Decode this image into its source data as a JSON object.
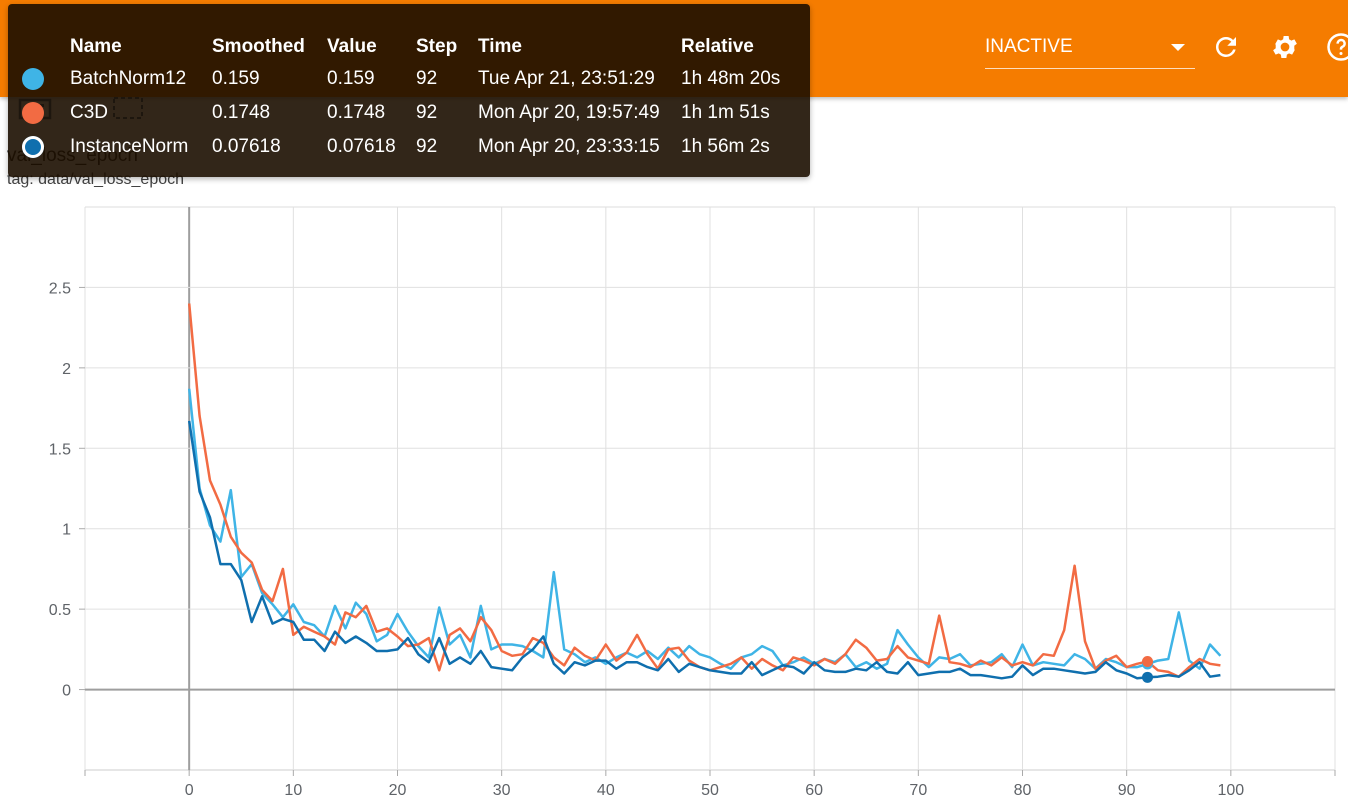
{
  "header": {
    "run_selector_value": "INACTIVE",
    "accent_color": "#f57c00"
  },
  "icons": [
    "refresh-icon",
    "settings-icon",
    "help-icon",
    "expand-icon",
    "fit-domain-icon"
  ],
  "card": {
    "title": "val_loss_epoch",
    "tag": "tag: data/val_loss_epoch"
  },
  "tooltip": {
    "columns": [
      "Name",
      "Smoothed",
      "Value",
      "Step",
      "Time",
      "Relative"
    ],
    "rows": [
      {
        "color": "#3fb4e6",
        "name": "BatchNorm12",
        "smoothed": "0.159",
        "value": "0.159",
        "step": "92",
        "time": "Tue Apr 21, 23:51:29",
        "relative": "1h 48m 20s"
      },
      {
        "color": "#f26b43",
        "name": "C3D",
        "smoothed": "0.1748",
        "value": "0.1748",
        "step": "92",
        "time": "Mon Apr 20, 19:57:49",
        "relative": "1h 1m 51s"
      },
      {
        "color": "#0f6fae",
        "name": "InstanceNorm",
        "smoothed": "0.07618",
        "value": "0.07618",
        "step": "92",
        "time": "Mon Apr 20, 23:33:15",
        "relative": "1h 56m 2s"
      }
    ]
  },
  "chart_data": {
    "type": "line",
    "title": "val_loss_epoch",
    "xlabel": "",
    "ylabel": "",
    "xlim": [
      -10,
      110
    ],
    "ylim": [
      -0.5,
      3
    ],
    "xticks": [
      0,
      10,
      20,
      30,
      40,
      50,
      60,
      70,
      80,
      90,
      100
    ],
    "yticks": [
      0,
      0.5,
      1,
      1.5,
      2,
      2.5
    ],
    "grid": true,
    "highlight_step": 92,
    "x": [
      0,
      1,
      2,
      3,
      4,
      5,
      6,
      7,
      8,
      9,
      10,
      11,
      12,
      13,
      14,
      15,
      16,
      17,
      18,
      19,
      20,
      21,
      22,
      23,
      24,
      25,
      26,
      27,
      28,
      29,
      30,
      31,
      32,
      33,
      34,
      35,
      36,
      37,
      38,
      39,
      40,
      41,
      42,
      43,
      44,
      45,
      46,
      47,
      48,
      49,
      50,
      51,
      52,
      53,
      54,
      55,
      56,
      57,
      58,
      59,
      60,
      61,
      62,
      63,
      64,
      65,
      66,
      67,
      68,
      69,
      70,
      71,
      72,
      73,
      74,
      75,
      76,
      77,
      78,
      79,
      80,
      81,
      82,
      83,
      84,
      85,
      86,
      87,
      88,
      89,
      90,
      91,
      92,
      93,
      94,
      95,
      96,
      97,
      98,
      99
    ],
    "series": [
      {
        "name": "BatchNorm12",
        "color": "#3fb4e6",
        "values": [
          1.87,
          1.25,
          1.02,
          0.92,
          1.24,
          0.7,
          0.78,
          0.6,
          0.53,
          0.45,
          0.53,
          0.42,
          0.4,
          0.33,
          0.52,
          0.38,
          0.54,
          0.47,
          0.3,
          0.34,
          0.47,
          0.36,
          0.27,
          0.2,
          0.51,
          0.28,
          0.34,
          0.2,
          0.52,
          0.25,
          0.28,
          0.28,
          0.27,
          0.24,
          0.2,
          0.73,
          0.25,
          0.22,
          0.17,
          0.2,
          0.16,
          0.2,
          0.23,
          0.2,
          0.24,
          0.19,
          0.26,
          0.2,
          0.27,
          0.22,
          0.2,
          0.16,
          0.13,
          0.2,
          0.22,
          0.27,
          0.24,
          0.15,
          0.17,
          0.2,
          0.16,
          0.19,
          0.17,
          0.22,
          0.14,
          0.17,
          0.13,
          0.16,
          0.37,
          0.28,
          0.2,
          0.14,
          0.2,
          0.19,
          0.22,
          0.15,
          0.16,
          0.17,
          0.22,
          0.14,
          0.28,
          0.15,
          0.17,
          0.16,
          0.15,
          0.22,
          0.19,
          0.13,
          0.19,
          0.17,
          0.14,
          0.14,
          0.159,
          0.18,
          0.19,
          0.48,
          0.18,
          0.13,
          0.28,
          0.21
        ]
      },
      {
        "name": "C3D",
        "color": "#f26b43",
        "values": [
          2.4,
          1.7,
          1.3,
          1.15,
          0.95,
          0.85,
          0.79,
          0.62,
          0.55,
          0.75,
          0.34,
          0.39,
          0.36,
          0.33,
          0.28,
          0.48,
          0.45,
          0.52,
          0.36,
          0.38,
          0.33,
          0.27,
          0.28,
          0.32,
          0.12,
          0.34,
          0.38,
          0.3,
          0.45,
          0.37,
          0.24,
          0.21,
          0.22,
          0.32,
          0.29,
          0.2,
          0.15,
          0.26,
          0.21,
          0.18,
          0.28,
          0.18,
          0.23,
          0.34,
          0.22,
          0.13,
          0.25,
          0.26,
          0.18,
          0.14,
          0.12,
          0.14,
          0.16,
          0.2,
          0.13,
          0.19,
          0.15,
          0.12,
          0.2,
          0.18,
          0.15,
          0.19,
          0.16,
          0.22,
          0.31,
          0.26,
          0.18,
          0.19,
          0.27,
          0.2,
          0.18,
          0.16,
          0.46,
          0.17,
          0.16,
          0.14,
          0.18,
          0.15,
          0.2,
          0.15,
          0.17,
          0.15,
          0.22,
          0.21,
          0.37,
          0.77,
          0.3,
          0.13,
          0.18,
          0.21,
          0.14,
          0.16,
          0.1748,
          0.12,
          0.11,
          0.08,
          0.14,
          0.19,
          0.16,
          0.15
        ]
      },
      {
        "name": "InstanceNorm",
        "color": "#0f6fae",
        "values": [
          1.67,
          1.23,
          1.07,
          0.78,
          0.78,
          0.68,
          0.42,
          0.58,
          0.41,
          0.44,
          0.42,
          0.31,
          0.31,
          0.24,
          0.36,
          0.29,
          0.33,
          0.29,
          0.24,
          0.24,
          0.25,
          0.32,
          0.22,
          0.17,
          0.32,
          0.16,
          0.2,
          0.16,
          0.24,
          0.14,
          0.13,
          0.12,
          0.2,
          0.25,
          0.33,
          0.16,
          0.1,
          0.17,
          0.15,
          0.18,
          0.18,
          0.13,
          0.17,
          0.17,
          0.14,
          0.12,
          0.19,
          0.11,
          0.16,
          0.14,
          0.12,
          0.11,
          0.1,
          0.1,
          0.17,
          0.09,
          0.12,
          0.15,
          0.14,
          0.1,
          0.17,
          0.12,
          0.11,
          0.11,
          0.13,
          0.12,
          0.17,
          0.11,
          0.1,
          0.17,
          0.09,
          0.1,
          0.11,
          0.11,
          0.13,
          0.09,
          0.09,
          0.08,
          0.07,
          0.08,
          0.15,
          0.09,
          0.13,
          0.13,
          0.12,
          0.11,
          0.1,
          0.11,
          0.17,
          0.12,
          0.1,
          0.07,
          0.07618,
          0.08,
          0.09,
          0.08,
          0.12,
          0.17,
          0.08,
          0.09
        ]
      }
    ]
  }
}
